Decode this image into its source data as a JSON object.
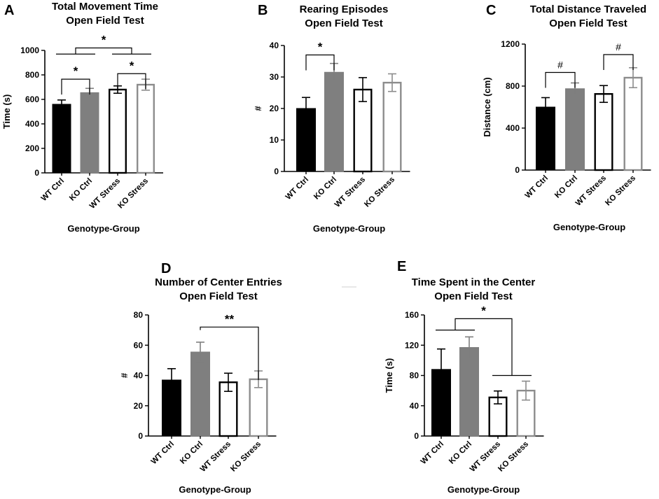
{
  "figure": {
    "center_mark": "—"
  },
  "chart_data": [
    {
      "panel": "A",
      "type": "bar",
      "title": [
        "Total Movement Time",
        "Open Field Test"
      ],
      "xlabel": "Genotype-Group",
      "ylabel": "Time (s)",
      "ylim": [
        0,
        1000
      ],
      "yticks": [
        0,
        200,
        400,
        600,
        800,
        1000
      ],
      "categories": [
        "WT Ctrl",
        "KO Ctrl",
        "WT Stress",
        "KO Stress"
      ],
      "values": [
        560,
        655,
        680,
        720
      ],
      "errors": [
        35,
        35,
        30,
        45
      ],
      "bar_styles": [
        "black",
        "gray",
        "white-black",
        "white-gray"
      ],
      "annotations": [
        {
          "type": "bracket",
          "from": 0,
          "to": 1,
          "level": 765,
          "label": "*"
        },
        {
          "type": "bracket",
          "from": 2,
          "to": 3,
          "level": 810,
          "label": "*"
        },
        {
          "type": "group",
          "left": [
            0,
            1
          ],
          "right": [
            2,
            3
          ],
          "base": 970,
          "top": 1020,
          "label": "*"
        }
      ]
    },
    {
      "panel": "B",
      "type": "bar",
      "title": [
        "Rearing Episodes",
        "Open Field Test"
      ],
      "xlabel": "Genotype-Group",
      "ylabel": "#",
      "ylim": [
        0,
        40
      ],
      "yticks": [
        0,
        10,
        20,
        30,
        40
      ],
      "categories": [
        "WT Ctrl",
        "KO Ctrl",
        "WT Stress",
        "KO Stress"
      ],
      "values": [
        20,
        31.5,
        26,
        28.2
      ],
      "errors": [
        3.5,
        2.8,
        3.8,
        2.8
      ],
      "bar_styles": [
        "black",
        "gray",
        "white-black",
        "white-gray"
      ],
      "annotations": [
        {
          "type": "bracket",
          "from": 0,
          "to": 1,
          "level": 37,
          "label": "*"
        }
      ]
    },
    {
      "panel": "C",
      "type": "bar",
      "title": [
        "Total Distance Traveled",
        "Open Field Test"
      ],
      "xlabel": "Genotype-Group",
      "ylabel": "Distance (cm)",
      "ylim": [
        0,
        1200
      ],
      "yticks": [
        0,
        400,
        800,
        1200
      ],
      "categories": [
        "WT Ctrl",
        "KO Ctrl",
        "WT Stress",
        "KO Stress"
      ],
      "values": [
        600,
        775,
        725,
        880
      ],
      "errors": [
        90,
        55,
        80,
        95
      ],
      "bar_styles": [
        "black",
        "gray",
        "white-black",
        "white-gray"
      ],
      "annotations": [
        {
          "type": "bracket",
          "from": 0,
          "to": 1,
          "level": 930,
          "label": "#",
          "font": "hash"
        },
        {
          "type": "bracket",
          "from": 2,
          "to": 3,
          "level": 1100,
          "label": "#",
          "font": "hash"
        }
      ]
    },
    {
      "panel": "D",
      "type": "bar",
      "title": [
        "Number of Center Entries",
        "Open Field Test"
      ],
      "xlabel": "Genotype-Group",
      "ylabel": "#",
      "ylim": [
        0,
        80
      ],
      "yticks": [
        0,
        20,
        40,
        60,
        80
      ],
      "categories": [
        "WT Ctrl",
        "KO Ctrl",
        "WT Stress",
        "KO Stress"
      ],
      "values": [
        37,
        55.5,
        35.5,
        37.5
      ],
      "errors": [
        7.5,
        6.5,
        6,
        5.5
      ],
      "bar_styles": [
        "black",
        "gray",
        "white-black",
        "white-gray"
      ],
      "annotations": [
        {
          "type": "bracket",
          "from": 1,
          "to": 3,
          "level": 72,
          "label": "**",
          "drop_left": 2,
          "drop_right": 35
        }
      ]
    },
    {
      "panel": "E",
      "type": "bar",
      "title": [
        "Time Spent in the Center",
        "Open Field Test"
      ],
      "xlabel": "Genotype-Group",
      "ylabel": "Time (s)",
      "ylim": [
        0,
        160
      ],
      "yticks": [
        0,
        40,
        80,
        120,
        160
      ],
      "categories": [
        "WT Ctrl",
        "KO Ctrl",
        "WT Stress",
        "KO Stress"
      ],
      "values": [
        88,
        117,
        51,
        60
      ],
      "errors": [
        27,
        14,
        8.5,
        12.5
      ],
      "bar_styles": [
        "black",
        "gray",
        "white-black",
        "white-gray"
      ],
      "annotations": [
        {
          "type": "group",
          "left": [
            0,
            1
          ],
          "right": [
            2,
            3
          ],
          "left_base": 140,
          "right_base": 80,
          "top": 155,
          "label": "*"
        }
      ]
    }
  ]
}
